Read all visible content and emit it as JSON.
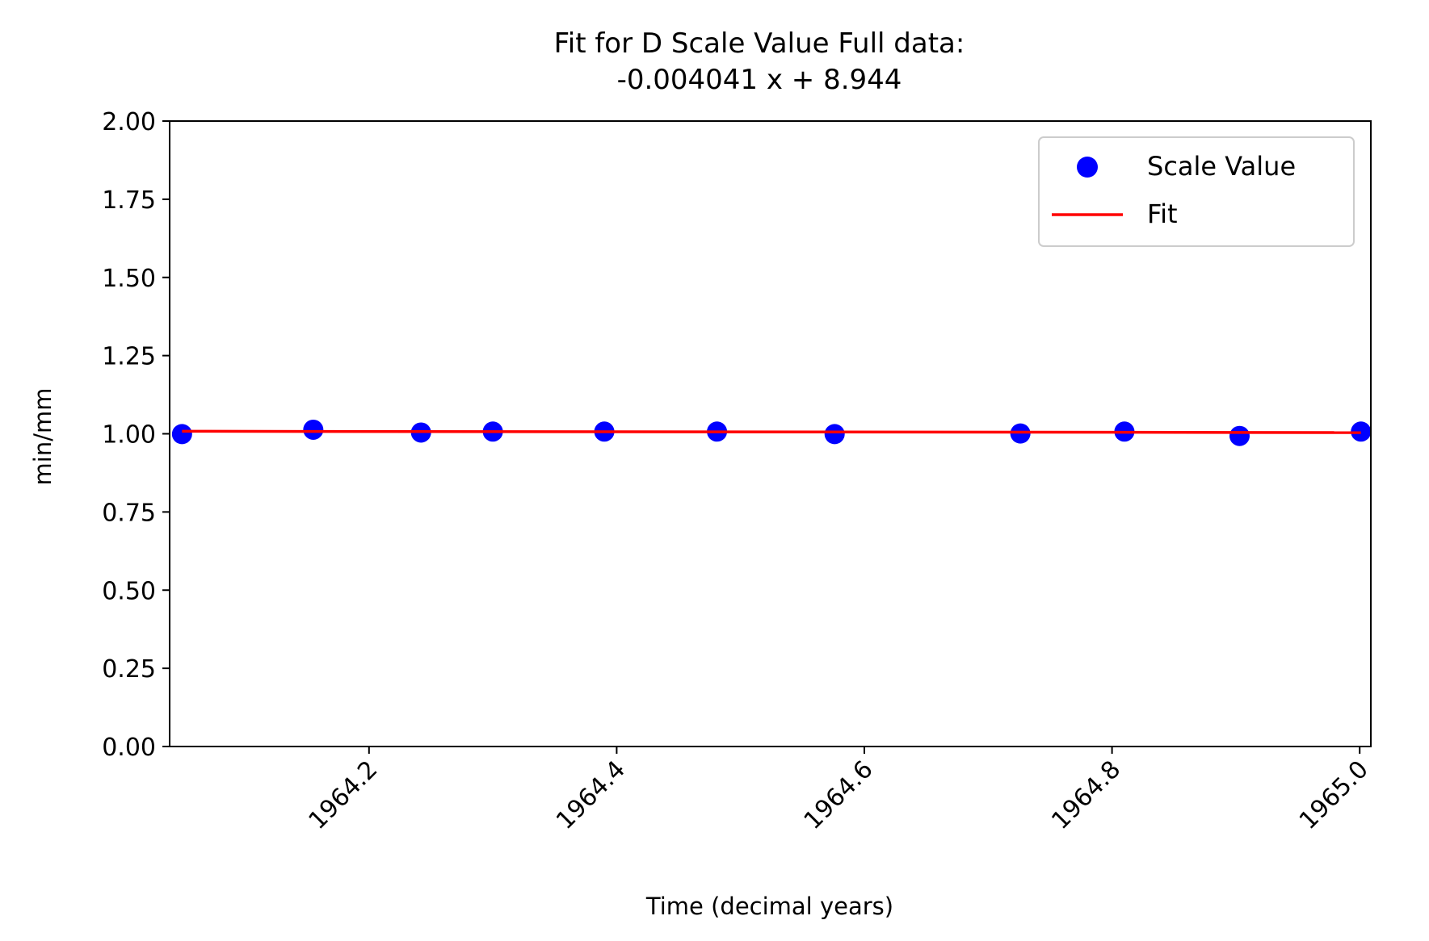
{
  "chart_data": {
    "type": "scatter",
    "title_line1": "Fit for D Scale Value Full data:",
    "title_line2": "-0.004041 x + 8.944",
    "xlabel": "Time (decimal years)",
    "ylabel": "min/mm",
    "xlim": [
      1964.039,
      1965.009
    ],
    "ylim": [
      0.0,
      2.0
    ],
    "xticks": [
      1964.2,
      1964.4,
      1964.6,
      1964.8,
      1965.0
    ],
    "xtick_labels": [
      "1964.2",
      "1964.4",
      "1964.6",
      "1964.8",
      "1965.0"
    ],
    "yticks": [
      0.0,
      0.25,
      0.5,
      0.75,
      1.0,
      1.25,
      1.5,
      1.75,
      2.0
    ],
    "ytick_labels": [
      "0.00",
      "0.25",
      "0.50",
      "0.75",
      "1.00",
      "1.25",
      "1.50",
      "1.75",
      "2.00"
    ],
    "grid": false,
    "legend_position": "top-right",
    "series": [
      {
        "name": "Scale Value",
        "kind": "scatter",
        "color": "#0000ff",
        "x": [
          1964.049,
          1964.155,
          1964.242,
          1964.3,
          1964.39,
          1964.481,
          1964.576,
          1964.726,
          1964.81,
          1964.903,
          1965.001
        ],
        "y": [
          0.999,
          1.013,
          1.004,
          1.007,
          1.007,
          1.007,
          0.999,
          1.001,
          1.007,
          0.993,
          1.007
        ]
      },
      {
        "name": "Fit",
        "kind": "line",
        "color": "#ff0000",
        "x": [
          1964.049,
          1965.001
        ],
        "y": [
          1.008,
          1.004
        ]
      }
    ]
  }
}
